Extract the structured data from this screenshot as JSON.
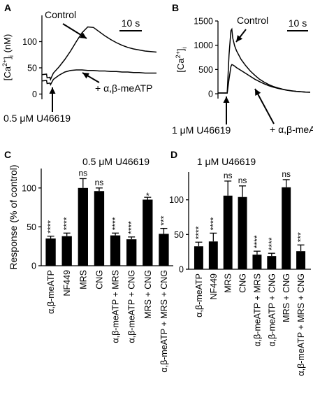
{
  "figure": {
    "panel_labels": [
      "A",
      "B",
      "C",
      "D"
    ]
  },
  "chart_data": [
    {
      "panel": "A",
      "type": "line",
      "ylabel": "[Ca2+]i (nM)",
      "ylabel_parts": {
        "main": "[Ca",
        "sup": "2+",
        "close": "]",
        "sub": "i",
        "unit": " (nM)"
      },
      "ylim": [
        -10,
        150
      ],
      "yticks": [
        0,
        50,
        100
      ],
      "xlim": [
        0,
        100
      ],
      "scale_bar": "10 s",
      "stimulus": {
        "label": "0.5 μM U46619",
        "x": 8
      },
      "series": [
        {
          "name": "Control",
          "x": [
            0,
            4,
            4.5,
            7,
            7.5,
            10,
            15,
            20,
            25,
            30,
            35,
            40,
            45,
            50,
            55,
            60,
            65,
            70,
            75,
            80,
            85,
            90,
            95,
            100
          ],
          "y": [
            37,
            38,
            31,
            32,
            28,
            40,
            52,
            66,
            82,
            100,
            117,
            128,
            127,
            119,
            111,
            104,
            98,
            93,
            89,
            86,
            84,
            82,
            81,
            80
          ]
        },
        {
          "name": "+ α,β-meATP",
          "x": [
            0,
            4,
            4.5,
            7,
            7.5,
            10,
            15,
            20,
            25,
            30,
            35,
            40,
            45,
            50,
            55,
            60,
            65,
            70,
            75,
            80,
            85,
            90,
            95,
            100
          ],
          "y": [
            25,
            26,
            20,
            21,
            18,
            28,
            36,
            42,
            45,
            46,
            46,
            45,
            45,
            44,
            44,
            43,
            43,
            42,
            42,
            41,
            41,
            40,
            40,
            40
          ]
        }
      ],
      "annotations": [
        "Control",
        "+ α,β-meATP",
        "0.5 μM U46619"
      ]
    },
    {
      "panel": "B",
      "type": "line",
      "ylabel": "[Ca2+]i",
      "ylabel_parts": {
        "main": "[Ca",
        "sup": "2+",
        "close": "]",
        "sub": "i",
        "unit": ""
      },
      "ylim": [
        -100,
        1500
      ],
      "yticks": [
        0,
        500,
        1000,
        1500
      ],
      "xlim": [
        0,
        100
      ],
      "scale_bar": "10 s",
      "stimulus": {
        "label": "1 μM U46619",
        "x": 10
      },
      "series": [
        {
          "name": "Control",
          "x": [
            0,
            7,
            10,
            12,
            14,
            15,
            16,
            18,
            20,
            25,
            30,
            35,
            40,
            45,
            50,
            55,
            60,
            65,
            70,
            75,
            80,
            85,
            90,
            95,
            100
          ],
          "y": [
            15,
            15,
            15,
            800,
            1300,
            1330,
            1150,
            990,
            890,
            710,
            580,
            470,
            380,
            300,
            240,
            190,
            150,
            120,
            95,
            75,
            60,
            50,
            42,
            36,
            32
          ]
        },
        {
          "name": "+ α,β-meATP",
          "x": [
            0,
            7,
            10,
            12,
            14,
            15,
            16,
            18,
            20,
            25,
            30,
            35,
            40,
            45,
            50,
            55,
            60,
            65,
            70,
            75,
            80,
            85,
            90,
            95,
            100
          ],
          "y": [
            15,
            15,
            15,
            300,
            560,
            600,
            595,
            570,
            540,
            480,
            420,
            360,
            300,
            250,
            205,
            165,
            135,
            110,
            90,
            72,
            58,
            48,
            40,
            34,
            30
          ]
        }
      ],
      "annotations": [
        "Control",
        "+ α,β-meATP",
        "1 μM U46619"
      ]
    },
    {
      "panel": "C",
      "type": "bar",
      "title": "0.5 μM U46619",
      "ylabel": "Response (% of control)",
      "ylim": [
        0,
        125
      ],
      "yticks": [
        0,
        50,
        100
      ],
      "categories": [
        "α,β-meATP",
        "NF449",
        "MRS",
        "CNG",
        "α,β-meATP + MRS",
        "α,β-meATP + CNG",
        "MRS + CNG",
        "α,β-meATP + MRS + CNG"
      ],
      "values": [
        35,
        38,
        100,
        96,
        39,
        34,
        85,
        41
      ],
      "errors": [
        3,
        4,
        12,
        4,
        3,
        3,
        3,
        7
      ],
      "significance": [
        "****",
        "****",
        "ns",
        "ns",
        "****",
        "****",
        "*",
        "***"
      ]
    },
    {
      "panel": "D",
      "type": "bar",
      "title": "1 μM U46619",
      "ylabel": "",
      "ylim": [
        0,
        140
      ],
      "yticks": [
        0,
        50,
        100
      ],
      "categories": [
        "α,β-meATP",
        "NF449",
        "MRS",
        "CNG",
        "α,β-meATP + MRS",
        "α,β-meATP + CNG",
        "MRS + CNG",
        "α,β-meATP + MRS + CNG"
      ],
      "values": [
        33,
        40,
        106,
        104,
        21,
        19,
        118,
        26
      ],
      "errors": [
        6,
        12,
        21,
        16,
        5,
        4,
        11,
        9
      ],
      "significance": [
        "****",
        "****",
        "ns",
        "ns",
        "****",
        "****",
        "ns",
        "***"
      ]
    }
  ]
}
